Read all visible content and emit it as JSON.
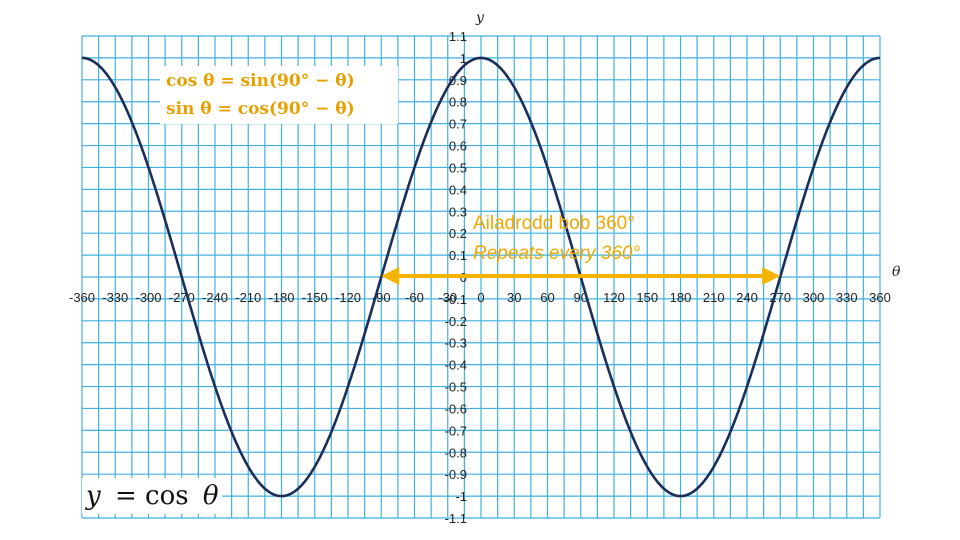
{
  "chart_data": {
    "type": "line",
    "title": "",
    "xlabel": "θ",
    "ylabel": "y",
    "xlim": [
      -360,
      360
    ],
    "ylim": [
      -1.1,
      1.1
    ],
    "grid": true,
    "x_ticks": [
      "-360",
      "-330",
      "-300",
      "-270",
      "-240",
      "-210",
      "-180",
      "-150",
      "-120",
      "-90",
      "-60",
      "-30",
      "0",
      "30",
      "60",
      "90",
      "120",
      "150",
      "180",
      "210",
      "240",
      "270",
      "300",
      "330",
      "360"
    ],
    "y_ticks": [
      "1.1",
      "1",
      "0.9",
      "0.8",
      "0.7",
      "0.6",
      "0.5",
      "0.4",
      "0.3",
      "0.2",
      "0.1",
      "0",
      "-0.1",
      "-0.2",
      "-0.3",
      "-0.4",
      "-0.5",
      "-0.6",
      "-0.7",
      "-0.8",
      "-0.9",
      "-1",
      "-1.1"
    ],
    "series": [
      {
        "function": "cos",
        "x": [
          -360,
          -330,
          -300,
          -270,
          -240,
          -210,
          -180,
          -150,
          -120,
          -90,
          -60,
          -30,
          0,
          30,
          60,
          90,
          120,
          150,
          180,
          210,
          240,
          270,
          300,
          330,
          360
        ],
        "values": [
          1,
          0.866,
          0.5,
          0,
          -0.5,
          -0.866,
          -1,
          -0.866,
          -0.5,
          0,
          0.5,
          0.866,
          1,
          0.866,
          0.5,
          0,
          -0.5,
          -0.866,
          -1,
          -0.866,
          -0.5,
          0,
          0.5,
          0.866,
          1
        ],
        "color": "#1a2e5a"
      }
    ],
    "annotations": {
      "identities": [
        "cos θ = sin(90° − θ)",
        "sin θ = cos(90° − θ)"
      ],
      "period_line1": "Ailadrodd bob 360°",
      "period_line2": "Repeats every 360°",
      "period_arrow_x": [
        -90,
        270
      ],
      "equation_lhs": "y",
      "equation_rhs": "= cos",
      "equation_var": "θ"
    },
    "colors": {
      "grid": "#3fb1e0",
      "curve": "#1a2e5a",
      "arrow": "#f2b400",
      "identity_text": "#e8a000"
    }
  }
}
